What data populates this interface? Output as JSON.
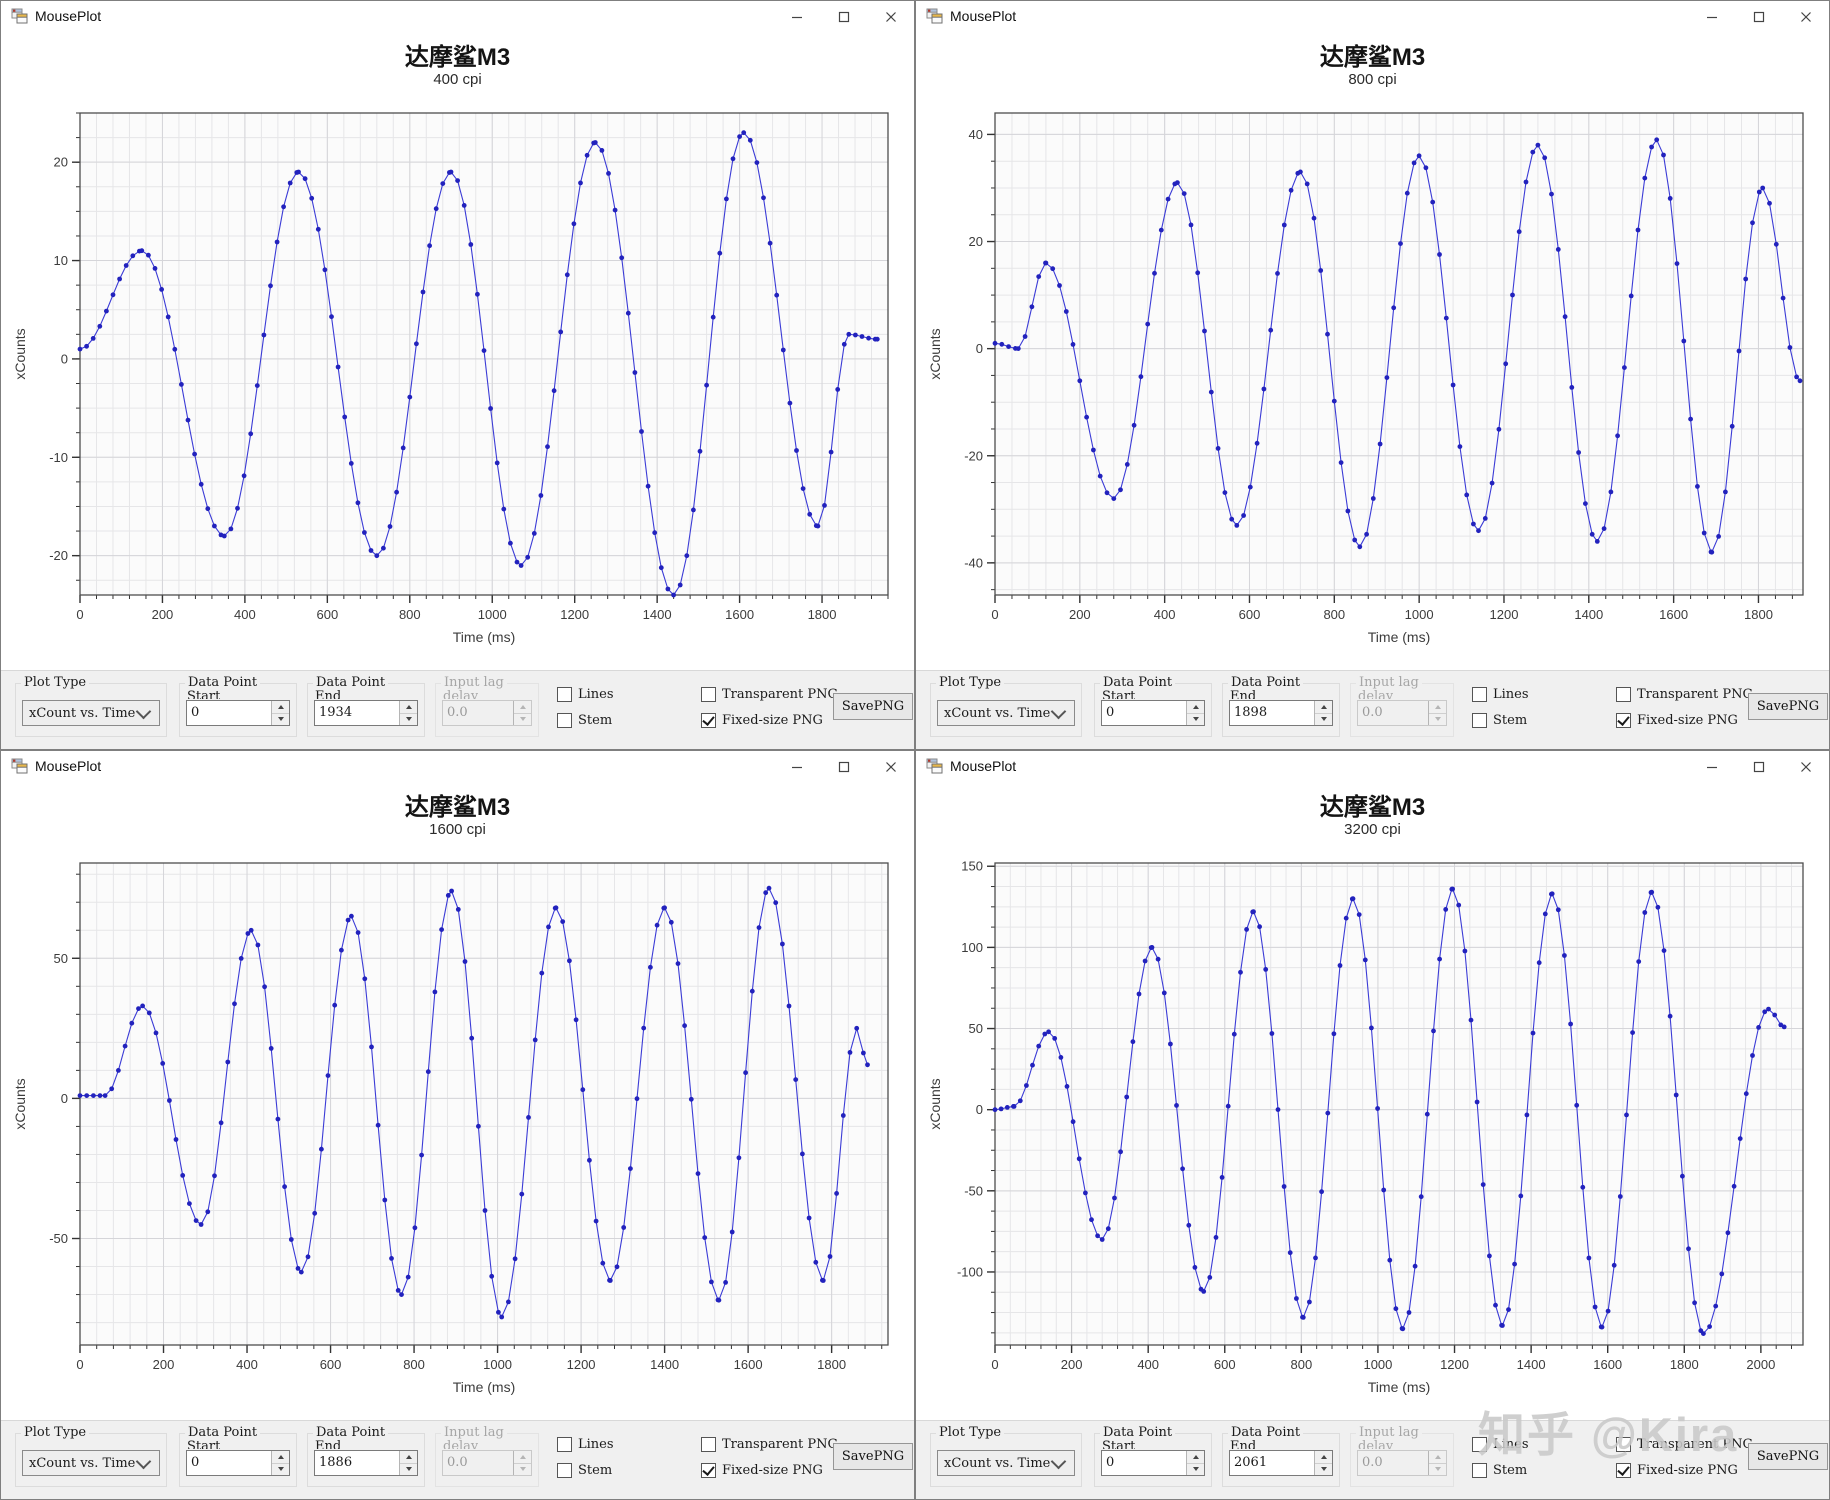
{
  "watermark": "知乎 @Kira",
  "colors": {
    "dot": "#2222bd",
    "line": "#3b3bd6",
    "grid_minor": "#e6e6e8",
    "grid_major": "#d5d5d9",
    "plot_bg": "#fbfbfb",
    "frame": "#4d4d4d",
    "tick": "#333333",
    "tick_label": "#3c3c3c",
    "panel_bg": "#f0f0f0"
  },
  "windows": [
    {
      "title": "MousePlot",
      "chart": {
        "title": "达摩鲨M3",
        "subtitle": "400 cpi"
      },
      "panel": {
        "plot_type_label": "Plot Type",
        "plot_type_value": "xCount vs. Time",
        "dp_start_label1": "Data Point",
        "dp_start_label2": "Start",
        "dp_start_value": "0",
        "dp_end_label1": "Data Point",
        "dp_end_label2": "End",
        "dp_end_value": "1934",
        "lag_label1": "Input lag",
        "lag_label2": "delay",
        "lag_value": "0.0",
        "lag_disabled": true,
        "checks": [
          {
            "label": "Lines",
            "checked": false
          },
          {
            "label": "Stem",
            "checked": false
          },
          {
            "label": "Transparent PNG",
            "checked": false
          },
          {
            "label": "Fixed-size PNG",
            "checked": true
          }
        ],
        "save_label": "SavePNG"
      }
    },
    {
      "title": "MousePlot",
      "chart": {
        "title": "达摩鲨M3",
        "subtitle": "800 cpi"
      },
      "panel": {
        "plot_type_label": "Plot Type",
        "plot_type_value": "xCount vs. Time",
        "dp_start_label1": "Data Point",
        "dp_start_label2": "Start",
        "dp_start_value": "0",
        "dp_end_label1": "Data Point",
        "dp_end_label2": "End",
        "dp_end_value": "1898",
        "lag_label1": "Input lag",
        "lag_label2": "delay",
        "lag_value": "0.0",
        "lag_disabled": true,
        "checks": [
          {
            "label": "Lines",
            "checked": false
          },
          {
            "label": "Stem",
            "checked": false
          },
          {
            "label": "Transparent PNG",
            "checked": false
          },
          {
            "label": "Fixed-size PNG",
            "checked": true
          }
        ],
        "save_label": "SavePNG"
      }
    },
    {
      "title": "MousePlot",
      "chart": {
        "title": "达摩鲨M3",
        "subtitle": "1600 cpi"
      },
      "panel": {
        "plot_type_label": "Plot Type",
        "plot_type_value": "xCount vs. Time",
        "dp_start_label1": "Data Point",
        "dp_start_label2": "Start",
        "dp_start_value": "0",
        "dp_end_label1": "Data Point",
        "dp_end_label2": "End",
        "dp_end_value": "1886",
        "lag_label1": "Input lag",
        "lag_label2": "delay",
        "lag_value": "0.0",
        "lag_disabled": true,
        "checks": [
          {
            "label": "Lines",
            "checked": false
          },
          {
            "label": "Stem",
            "checked": false
          },
          {
            "label": "Transparent PNG",
            "checked": false
          },
          {
            "label": "Fixed-size PNG",
            "checked": true
          }
        ],
        "save_label": "SavePNG"
      }
    },
    {
      "title": "MousePlot",
      "chart": {
        "title": "达摩鲨M3",
        "subtitle": "3200 cpi"
      },
      "panel": {
        "plot_type_label": "Plot Type",
        "plot_type_value": "xCount vs. Time",
        "dp_start_label1": "Data Point",
        "dp_start_label2": "Start",
        "dp_start_value": "0",
        "dp_end_label1": "Data Point",
        "dp_end_label2": "End",
        "dp_end_value": "2061",
        "lag_label1": "Input lag",
        "lag_label2": "delay",
        "lag_value": "0.0",
        "lag_disabled": true,
        "checks": [
          {
            "label": "Lines",
            "checked": false
          },
          {
            "label": "Stem",
            "checked": false
          },
          {
            "label": "Transparent PNG",
            "checked": false
          },
          {
            "label": "Fixed-size PNG",
            "checked": true
          }
        ],
        "save_label": "SavePNG"
      }
    }
  ],
  "chart_data": [
    {
      "type": "line",
      "title": "达摩鲨M3",
      "subtitle": "400 cpi",
      "xlabel": "Time (ms)",
      "ylabel": "xCounts",
      "series_name": "xCounts",
      "grid": true,
      "marker": "dot",
      "xlim": [
        0,
        1960
      ],
      "ylim": [
        -24,
        25
      ],
      "xticks": [
        0,
        200,
        400,
        600,
        800,
        1000,
        1200,
        1400,
        1600,
        1800
      ],
      "yticks": [
        -20,
        -10,
        0,
        10,
        20
      ],
      "x_minor": 40,
      "y_minor": 2.5,
      "sample_interval_ms": 16,
      "keypoints": [
        [
          0,
          1
        ],
        [
          150,
          11
        ],
        [
          350,
          -18
        ],
        [
          530,
          19
        ],
        [
          720,
          -20
        ],
        [
          900,
          19
        ],
        [
          1070,
          -21
        ],
        [
          1250,
          22
        ],
        [
          1440,
          -24
        ],
        [
          1610,
          23
        ],
        [
          1790,
          -17
        ],
        [
          1865,
          2.5
        ],
        [
          1934,
          2
        ]
      ]
    },
    {
      "type": "line",
      "title": "达摩鲨M3",
      "subtitle": "800 cpi",
      "xlabel": "Time (ms)",
      "ylabel": "xCounts",
      "series_name": "xCounts",
      "grid": true,
      "marker": "dot",
      "xlim": [
        0,
        1905
      ],
      "ylim": [
        -46,
        44
      ],
      "xticks": [
        0,
        200,
        400,
        600,
        800,
        1000,
        1200,
        1400,
        1600,
        1800
      ],
      "yticks": [
        -40,
        -20,
        0,
        20,
        40
      ],
      "x_minor": 40,
      "y_minor": 5,
      "sample_interval_ms": 16,
      "keypoints": [
        [
          0,
          1
        ],
        [
          55,
          0
        ],
        [
          120,
          16
        ],
        [
          280,
          -28
        ],
        [
          430,
          31
        ],
        [
          570,
          -33
        ],
        [
          720,
          33
        ],
        [
          860,
          -37
        ],
        [
          1000,
          36
        ],
        [
          1140,
          -34
        ],
        [
          1280,
          38
        ],
        [
          1420,
          -36
        ],
        [
          1560,
          39
        ],
        [
          1690,
          -38
        ],
        [
          1810,
          30
        ],
        [
          1898,
          -6
        ]
      ]
    },
    {
      "type": "line",
      "title": "达摩鲨M3",
      "subtitle": "1600 cpi",
      "xlabel": "Time (ms)",
      "ylabel": "xCounts",
      "series_name": "xCounts",
      "grid": true,
      "marker": "dot",
      "xlim": [
        0,
        1935
      ],
      "ylim": [
        -88,
        84
      ],
      "xticks": [
        0,
        200,
        400,
        600,
        800,
        1000,
        1200,
        1400,
        1600,
        1800
      ],
      "yticks": [
        -50,
        0,
        50
      ],
      "x_minor": 40,
      "y_minor": 10,
      "sample_interval_ms": 16,
      "keypoints": [
        [
          0,
          1
        ],
        [
          60,
          1
        ],
        [
          150,
          33
        ],
        [
          290,
          -45
        ],
        [
          410,
          60
        ],
        [
          530,
          -62
        ],
        [
          650,
          65
        ],
        [
          770,
          -70
        ],
        [
          890,
          74
        ],
        [
          1010,
          -78
        ],
        [
          1140,
          68
        ],
        [
          1270,
          -65
        ],
        [
          1400,
          68
        ],
        [
          1530,
          -72
        ],
        [
          1650,
          75
        ],
        [
          1780,
          -65
        ],
        [
          1860,
          25
        ],
        [
          1886,
          12
        ]
      ]
    },
    {
      "type": "line",
      "title": "达摩鲨M3",
      "subtitle": "3200 cpi",
      "xlabel": "Time (ms)",
      "ylabel": "xCounts",
      "series_name": "xCounts",
      "grid": true,
      "marker": "dot",
      "xlim": [
        0,
        2110
      ],
      "ylim": [
        -145,
        152
      ],
      "xticks": [
        0,
        200,
        400,
        600,
        800,
        1000,
        1200,
        1400,
        1600,
        1800,
        2000
      ],
      "yticks": [
        -100,
        -50,
        0,
        50,
        100,
        150
      ],
      "x_minor": 40,
      "y_minor": 12.5,
      "sample_interval_ms": 16,
      "keypoints": [
        [
          0,
          0
        ],
        [
          50,
          2
        ],
        [
          140,
          48
        ],
        [
          280,
          -80
        ],
        [
          410,
          100
        ],
        [
          545,
          -112
        ],
        [
          675,
          122
        ],
        [
          805,
          -128
        ],
        [
          935,
          130
        ],
        [
          1065,
          -135
        ],
        [
          1195,
          136
        ],
        [
          1325,
          -133
        ],
        [
          1455,
          133
        ],
        [
          1585,
          -134
        ],
        [
          1715,
          134
        ],
        [
          1850,
          -138
        ],
        [
          2020,
          62
        ],
        [
          2061,
          51
        ]
      ]
    }
  ]
}
